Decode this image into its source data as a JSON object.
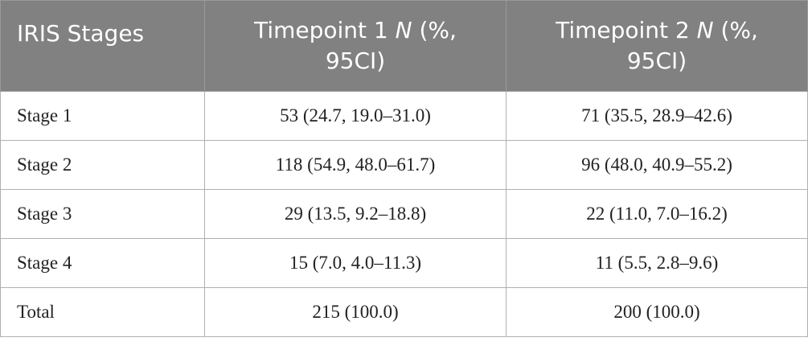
{
  "table": {
    "header": [
      [
        "IRIS Stages"
      ],
      [
        "Timepoint 1 ",
        "N",
        " (%, 95CI)"
      ],
      [
        "Timepoint 2 ",
        "N",
        " (%, 95CI)"
      ]
    ],
    "rows": [
      [
        "Stage 1",
        "53 (24.7, 19.0–31.0)",
        "71 (35.5, 28.9–42.6)"
      ],
      [
        "Stage 2",
        "118 (54.9, 48.0–61.7)",
        "96 (48.0, 40.9–55.2)"
      ],
      [
        "Stage 3",
        "29 (13.5, 9.2–18.8)",
        "22 (11.0, 7.0–16.2)"
      ],
      [
        "Stage 4",
        "15 (7.0, 4.0–11.3)",
        "11 (5.5, 2.8–9.6)"
      ],
      [
        "Total",
        "215 (100.0)",
        "200 (100.0)"
      ]
    ]
  }
}
